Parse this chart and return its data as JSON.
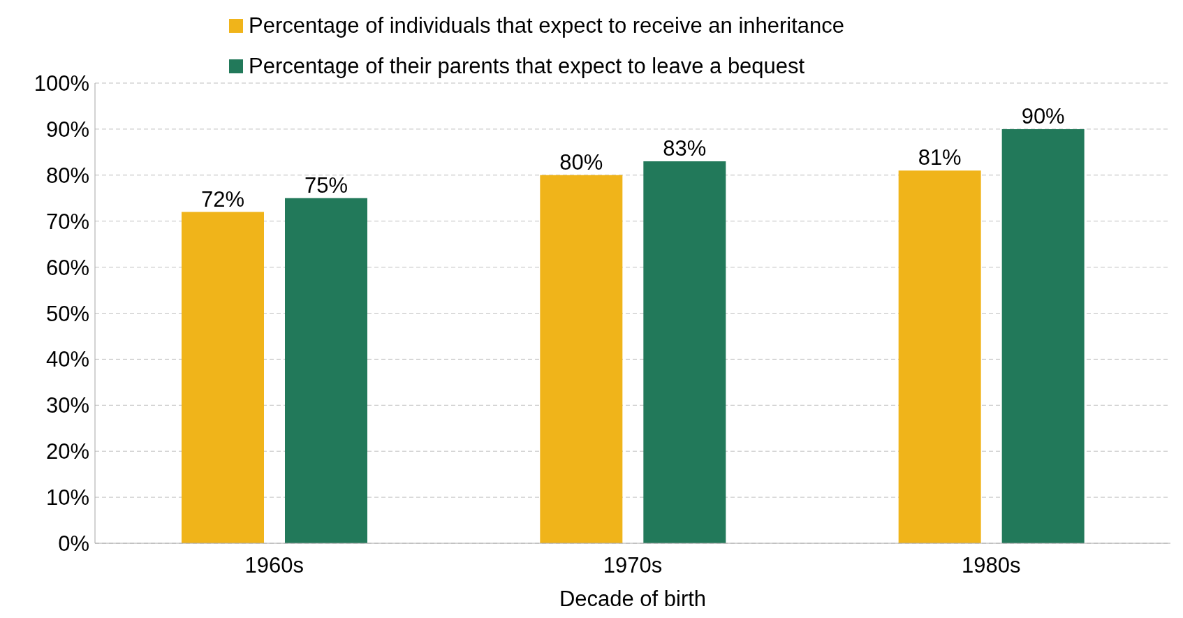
{
  "chart_data": {
    "type": "bar",
    "xlabel": "Decade of birth",
    "categories": [
      "1960s",
      "1970s",
      "1980s"
    ],
    "series": [
      {
        "name": "Percentage of individuals that expect to receive an inheritance",
        "color": "#f0b41a",
        "values": [
          72,
          80,
          81
        ],
        "value_labels": [
          "72%",
          "80%",
          "81%"
        ]
      },
      {
        "name": "Percentage of their parents that expect to leave a bequest",
        "color": "#22795a",
        "values": [
          75,
          83,
          90
        ],
        "value_labels": [
          "75%",
          "83%",
          "90%"
        ]
      }
    ],
    "ylim": [
      0,
      100
    ],
    "yticks": [
      {
        "value": 0,
        "label": "0%"
      },
      {
        "value": 10,
        "label": "10%"
      },
      {
        "value": 20,
        "label": "20%"
      },
      {
        "value": 30,
        "label": "30%"
      },
      {
        "value": 40,
        "label": "40%"
      },
      {
        "value": 50,
        "label": "50%"
      },
      {
        "value": 60,
        "label": "60%"
      },
      {
        "value": 70,
        "label": "70%"
      },
      {
        "value": 80,
        "label": "80%"
      },
      {
        "value": 90,
        "label": "90%"
      },
      {
        "value": 100,
        "label": "100%"
      }
    ],
    "grid": "y",
    "legend": "top"
  }
}
